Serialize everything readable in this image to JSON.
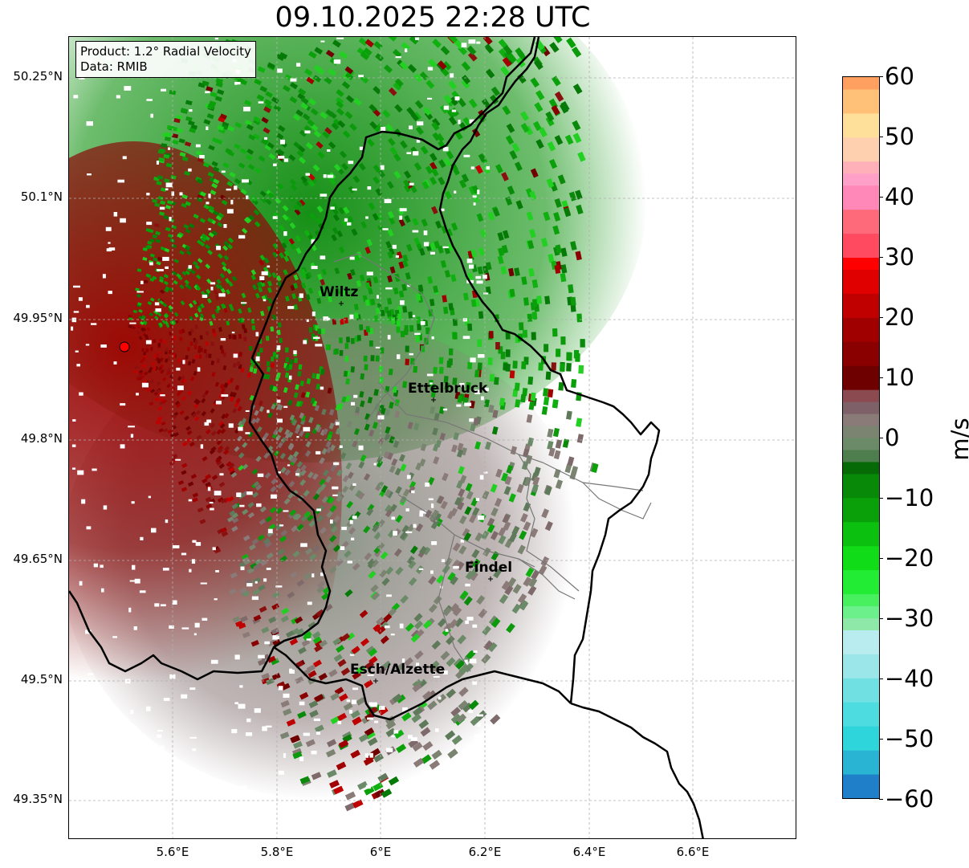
{
  "title": "09.10.2025 22:28 UTC",
  "info": {
    "product": "Product: 1.2° Radial Velocity",
    "data": "Data: RMIB"
  },
  "lat_ticks": [
    "50.25°N",
    "50.1°N",
    "49.95°N",
    "49.8°N",
    "49.65°N",
    "49.5°N",
    "49.35°N"
  ],
  "lon_ticks": [
    "5.6°E",
    "5.8°E",
    "6°E",
    "6.2°E",
    "6.4°E",
    "6.6°E"
  ],
  "colorbar": {
    "label": "m/s",
    "min": -60,
    "max": 60,
    "ticks": [
      "60",
      "50",
      "40",
      "30",
      "20",
      "10",
      "0",
      "−10",
      "−20",
      "−30",
      "−40",
      "−50",
      "−60"
    ]
  },
  "cities": [
    {
      "name": "Wiltz"
    },
    {
      "name": "Ettelbruck"
    },
    {
      "name": "Findel"
    },
    {
      "name": "Esch/Alzette"
    }
  ],
  "colors": {
    "border": "#000000",
    "radar_site": "#ff0000",
    "grid": "#b0b0b0"
  }
}
